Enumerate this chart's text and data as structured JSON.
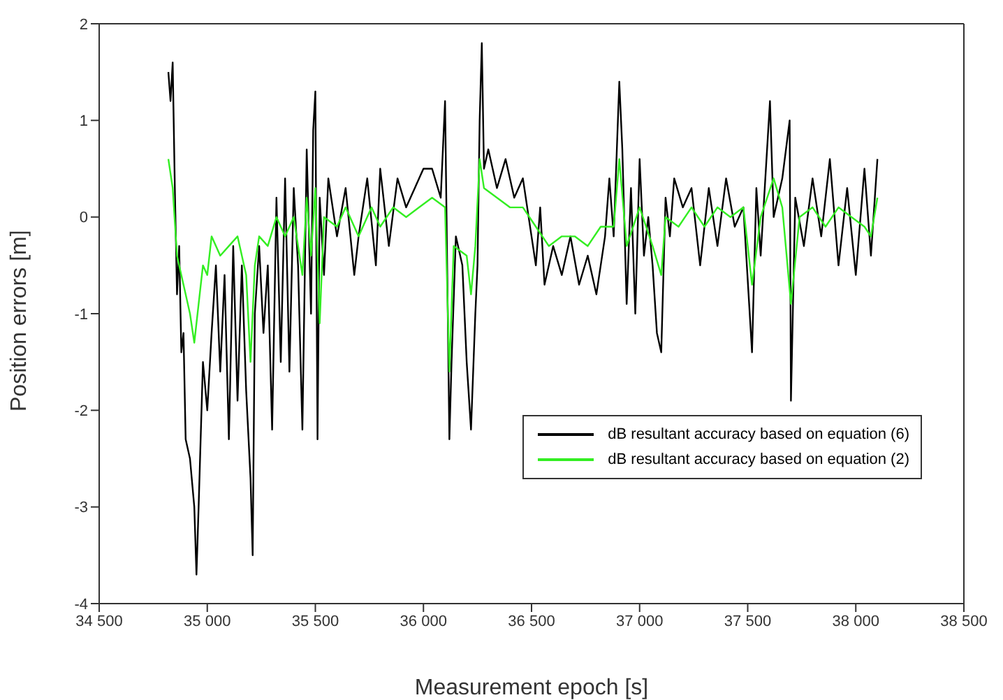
{
  "chart_data": {
    "type": "line",
    "xlabel": "Measurement epoch [s]",
    "ylabel": "Position errors [m]",
    "xlim": [
      34500,
      38500
    ],
    "ylim": [
      -4,
      2
    ],
    "xticks": [
      {
        "value": 34500,
        "label": "34 500"
      },
      {
        "value": 35000,
        "label": "35 000"
      },
      {
        "value": 35500,
        "label": "35 500"
      },
      {
        "value": 36000,
        "label": "36 000"
      },
      {
        "value": 36500,
        "label": "36 500"
      },
      {
        "value": 37000,
        "label": "37 000"
      },
      {
        "value": 37500,
        "label": "37 500"
      },
      {
        "value": 38000,
        "label": "38 000"
      },
      {
        "value": 38500,
        "label": "38 500"
      }
    ],
    "yticks": [
      -4,
      -3,
      -2,
      -1,
      0,
      1,
      2
    ],
    "grid": false,
    "legend": "bottom right",
    "marker": "none",
    "line_style": "solid",
    "series": [
      {
        "name": "dB resultant accuracy based on equation (6)",
        "color": "#000000",
        "x": [
          34820,
          34830,
          34840,
          34850,
          34860,
          34870,
          34880,
          34890,
          34900,
          34920,
          34940,
          34950,
          34960,
          34980,
          35000,
          35020,
          35040,
          35060,
          35080,
          35100,
          35120,
          35140,
          35160,
          35180,
          35200,
          35210,
          35220,
          35240,
          35260,
          35280,
          35300,
          35320,
          35340,
          35360,
          35380,
          35400,
          35420,
          35440,
          35460,
          35480,
          35490,
          35500,
          35510,
          35520,
          35540,
          35560,
          35600,
          35640,
          35680,
          35700,
          35740,
          35780,
          35800,
          35840,
          35880,
          35920,
          35960,
          36000,
          36040,
          36080,
          36100,
          36120,
          36130,
          36150,
          36180,
          36200,
          36220,
          36240,
          36250,
          36260,
          36270,
          36280,
          36300,
          36340,
          36380,
          36420,
          36460,
          36500,
          36520,
          36540,
          36560,
          36600,
          36640,
          36680,
          36720,
          36760,
          36800,
          36840,
          36860,
          36880,
          36906,
          36920,
          36940,
          36960,
          36980,
          37000,
          37020,
          37040,
          37060,
          37080,
          37100,
          37120,
          37140,
          37160,
          37200,
          37240,
          37280,
          37320,
          37360,
          37400,
          37440,
          37480,
          37520,
          37540,
          37560,
          37603,
          37620,
          37660,
          37694,
          37700,
          37720,
          37760,
          37800,
          37840,
          37880,
          37920,
          37960,
          38000,
          38040,
          38070,
          38100
        ],
        "values": [
          1.5,
          1.2,
          1.6,
          0.3,
          -0.8,
          -0.3,
          -1.4,
          -1.2,
          -2.3,
          -2.5,
          -3.0,
          -3.7,
          -3.0,
          -1.5,
          -2.0,
          -1.2,
          -0.5,
          -1.6,
          -0.6,
          -2.3,
          -0.3,
          -1.9,
          -0.5,
          -1.8,
          -2.7,
          -3.5,
          -1.0,
          -0.3,
          -1.2,
          -0.5,
          -2.2,
          0.2,
          -1.5,
          0.4,
          -1.6,
          0.3,
          -0.5,
          -2.2,
          0.7,
          -1.0,
          0.9,
          1.3,
          -2.3,
          0.2,
          -0.6,
          0.4,
          -0.2,
          0.3,
          -0.6,
          -0.2,
          0.4,
          -0.5,
          0.5,
          -0.3,
          0.4,
          0.1,
          0.3,
          0.5,
          0.5,
          0.2,
          1.2,
          -2.3,
          -1.5,
          -0.2,
          -0.5,
          -1.5,
          -2.2,
          -1.0,
          -0.5,
          1.0,
          1.8,
          0.5,
          0.7,
          0.3,
          0.6,
          0.2,
          0.4,
          -0.2,
          -0.5,
          0.1,
          -0.7,
          -0.3,
          -0.6,
          -0.2,
          -0.7,
          -0.4,
          -0.8,
          -0.2,
          0.4,
          -0.2,
          1.4,
          0.7,
          -0.9,
          0.3,
          -1.0,
          0.6,
          -0.4,
          0.0,
          -0.5,
          -1.2,
          -1.4,
          0.2,
          -0.2,
          0.4,
          0.1,
          0.3,
          -0.5,
          0.3,
          -0.3,
          0.4,
          -0.1,
          0.1,
          -1.4,
          0.3,
          -0.4,
          1.2,
          0.0,
          0.4,
          1.0,
          -1.9,
          0.2,
          -0.3,
          0.4,
          -0.2,
          0.6,
          -0.5,
          0.3,
          -0.6,
          0.5,
          -0.4,
          0.6
        ]
      },
      {
        "name": "dB resultant accuracy based on equation (2)",
        "color": "#33ee22",
        "x": [
          34820,
          34840,
          34860,
          34880,
          34900,
          34920,
          34940,
          34960,
          34980,
          35000,
          35020,
          35060,
          35100,
          35140,
          35180,
          35200,
          35220,
          35240,
          35280,
          35320,
          35360,
          35400,
          35440,
          35460,
          35480,
          35500,
          35520,
          35540,
          35600,
          35640,
          35700,
          35760,
          35800,
          35860,
          35920,
          35980,
          36040,
          36100,
          36120,
          36140,
          36200,
          36220,
          36240,
          36260,
          36280,
          36340,
          36400,
          36460,
          36520,
          36580,
          36640,
          36700,
          36760,
          36820,
          36880,
          36906,
          36940,
          37000,
          37060,
          37100,
          37120,
          37180,
          37240,
          37300,
          37360,
          37420,
          37480,
          37520,
          37560,
          37620,
          37660,
          37700,
          37740,
          37800,
          37860,
          37920,
          37980,
          38040,
          38070,
          38100
        ],
        "values": [
          0.6,
          0.3,
          -0.4,
          -0.6,
          -0.8,
          -1.0,
          -1.3,
          -0.9,
          -0.5,
          -0.6,
          -0.2,
          -0.4,
          -0.3,
          -0.2,
          -0.6,
          -1.5,
          -0.5,
          -0.2,
          -0.3,
          0.0,
          -0.2,
          0.0,
          -0.6,
          0.2,
          -0.4,
          0.3,
          -1.1,
          0.0,
          -0.1,
          0.1,
          -0.2,
          0.1,
          -0.1,
          0.1,
          0.0,
          0.1,
          0.2,
          0.1,
          -1.6,
          -0.3,
          -0.4,
          -0.8,
          -0.3,
          0.6,
          0.3,
          0.2,
          0.1,
          0.1,
          -0.1,
          -0.3,
          -0.2,
          -0.2,
          -0.3,
          -0.1,
          -0.1,
          0.6,
          -0.3,
          0.1,
          -0.3,
          -0.6,
          0.0,
          -0.1,
          0.1,
          -0.1,
          0.1,
          0.0,
          0.1,
          -0.7,
          0.0,
          0.4,
          0.1,
          -0.9,
          0.0,
          0.1,
          -0.1,
          0.1,
          0.0,
          -0.1,
          -0.2,
          0.2
        ]
      }
    ]
  }
}
